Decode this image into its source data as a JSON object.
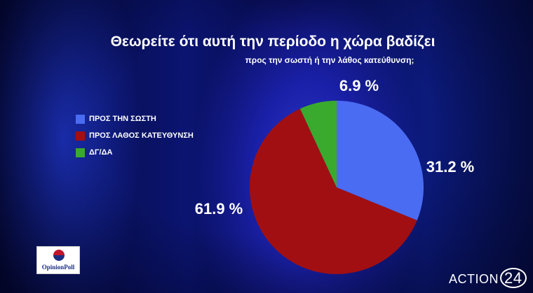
{
  "title": "Θεωρείτε ότι αυτή την περίοδο η χώρα βαδίζει",
  "subtitle": "προς την σωστή ή την λάθος κατεύθυνση;",
  "chart_data": {
    "type": "pie",
    "title": "Θεωρείτε ότι αυτή την περίοδο η χώρα βαδίζει",
    "subtitle": "προς την σωστή ή την λάθος κατεύθυνση;",
    "legend_position": "left",
    "slices": [
      {
        "label": "ΠΡΟΣ ΤΗΝ ΣΩΣΤΗ",
        "value": 31.2,
        "display": "31.2 %",
        "color": "#4a6cf2"
      },
      {
        "label": "ΠΡΟΣ ΛΑΘΟΣ ΚΑΤΕΥΘΥΝΣΗ",
        "value": 61.9,
        "display": "61.9 %",
        "color": "#a20f12"
      },
      {
        "label": "ΔΓ/ΔΑ",
        "value": 6.9,
        "display": "6.9 %",
        "color": "#3aaa2e"
      }
    ]
  },
  "legend": [
    {
      "label": "ΠΡΟΣ ΤΗΝ ΣΩΣΤΗ",
      "color": "#4a6cf2"
    },
    {
      "label": "ΠΡΟΣ ΛΑΘΟΣ ΚΑΤΕΥΘΥΝΣΗ",
      "color": "#a20f12"
    },
    {
      "label": "ΔΓ/ΔΑ",
      "color": "#3aaa2e"
    }
  ],
  "logos": {
    "left_text": "OpinionPoll",
    "right_text": "ACTION",
    "right_number": "24"
  }
}
